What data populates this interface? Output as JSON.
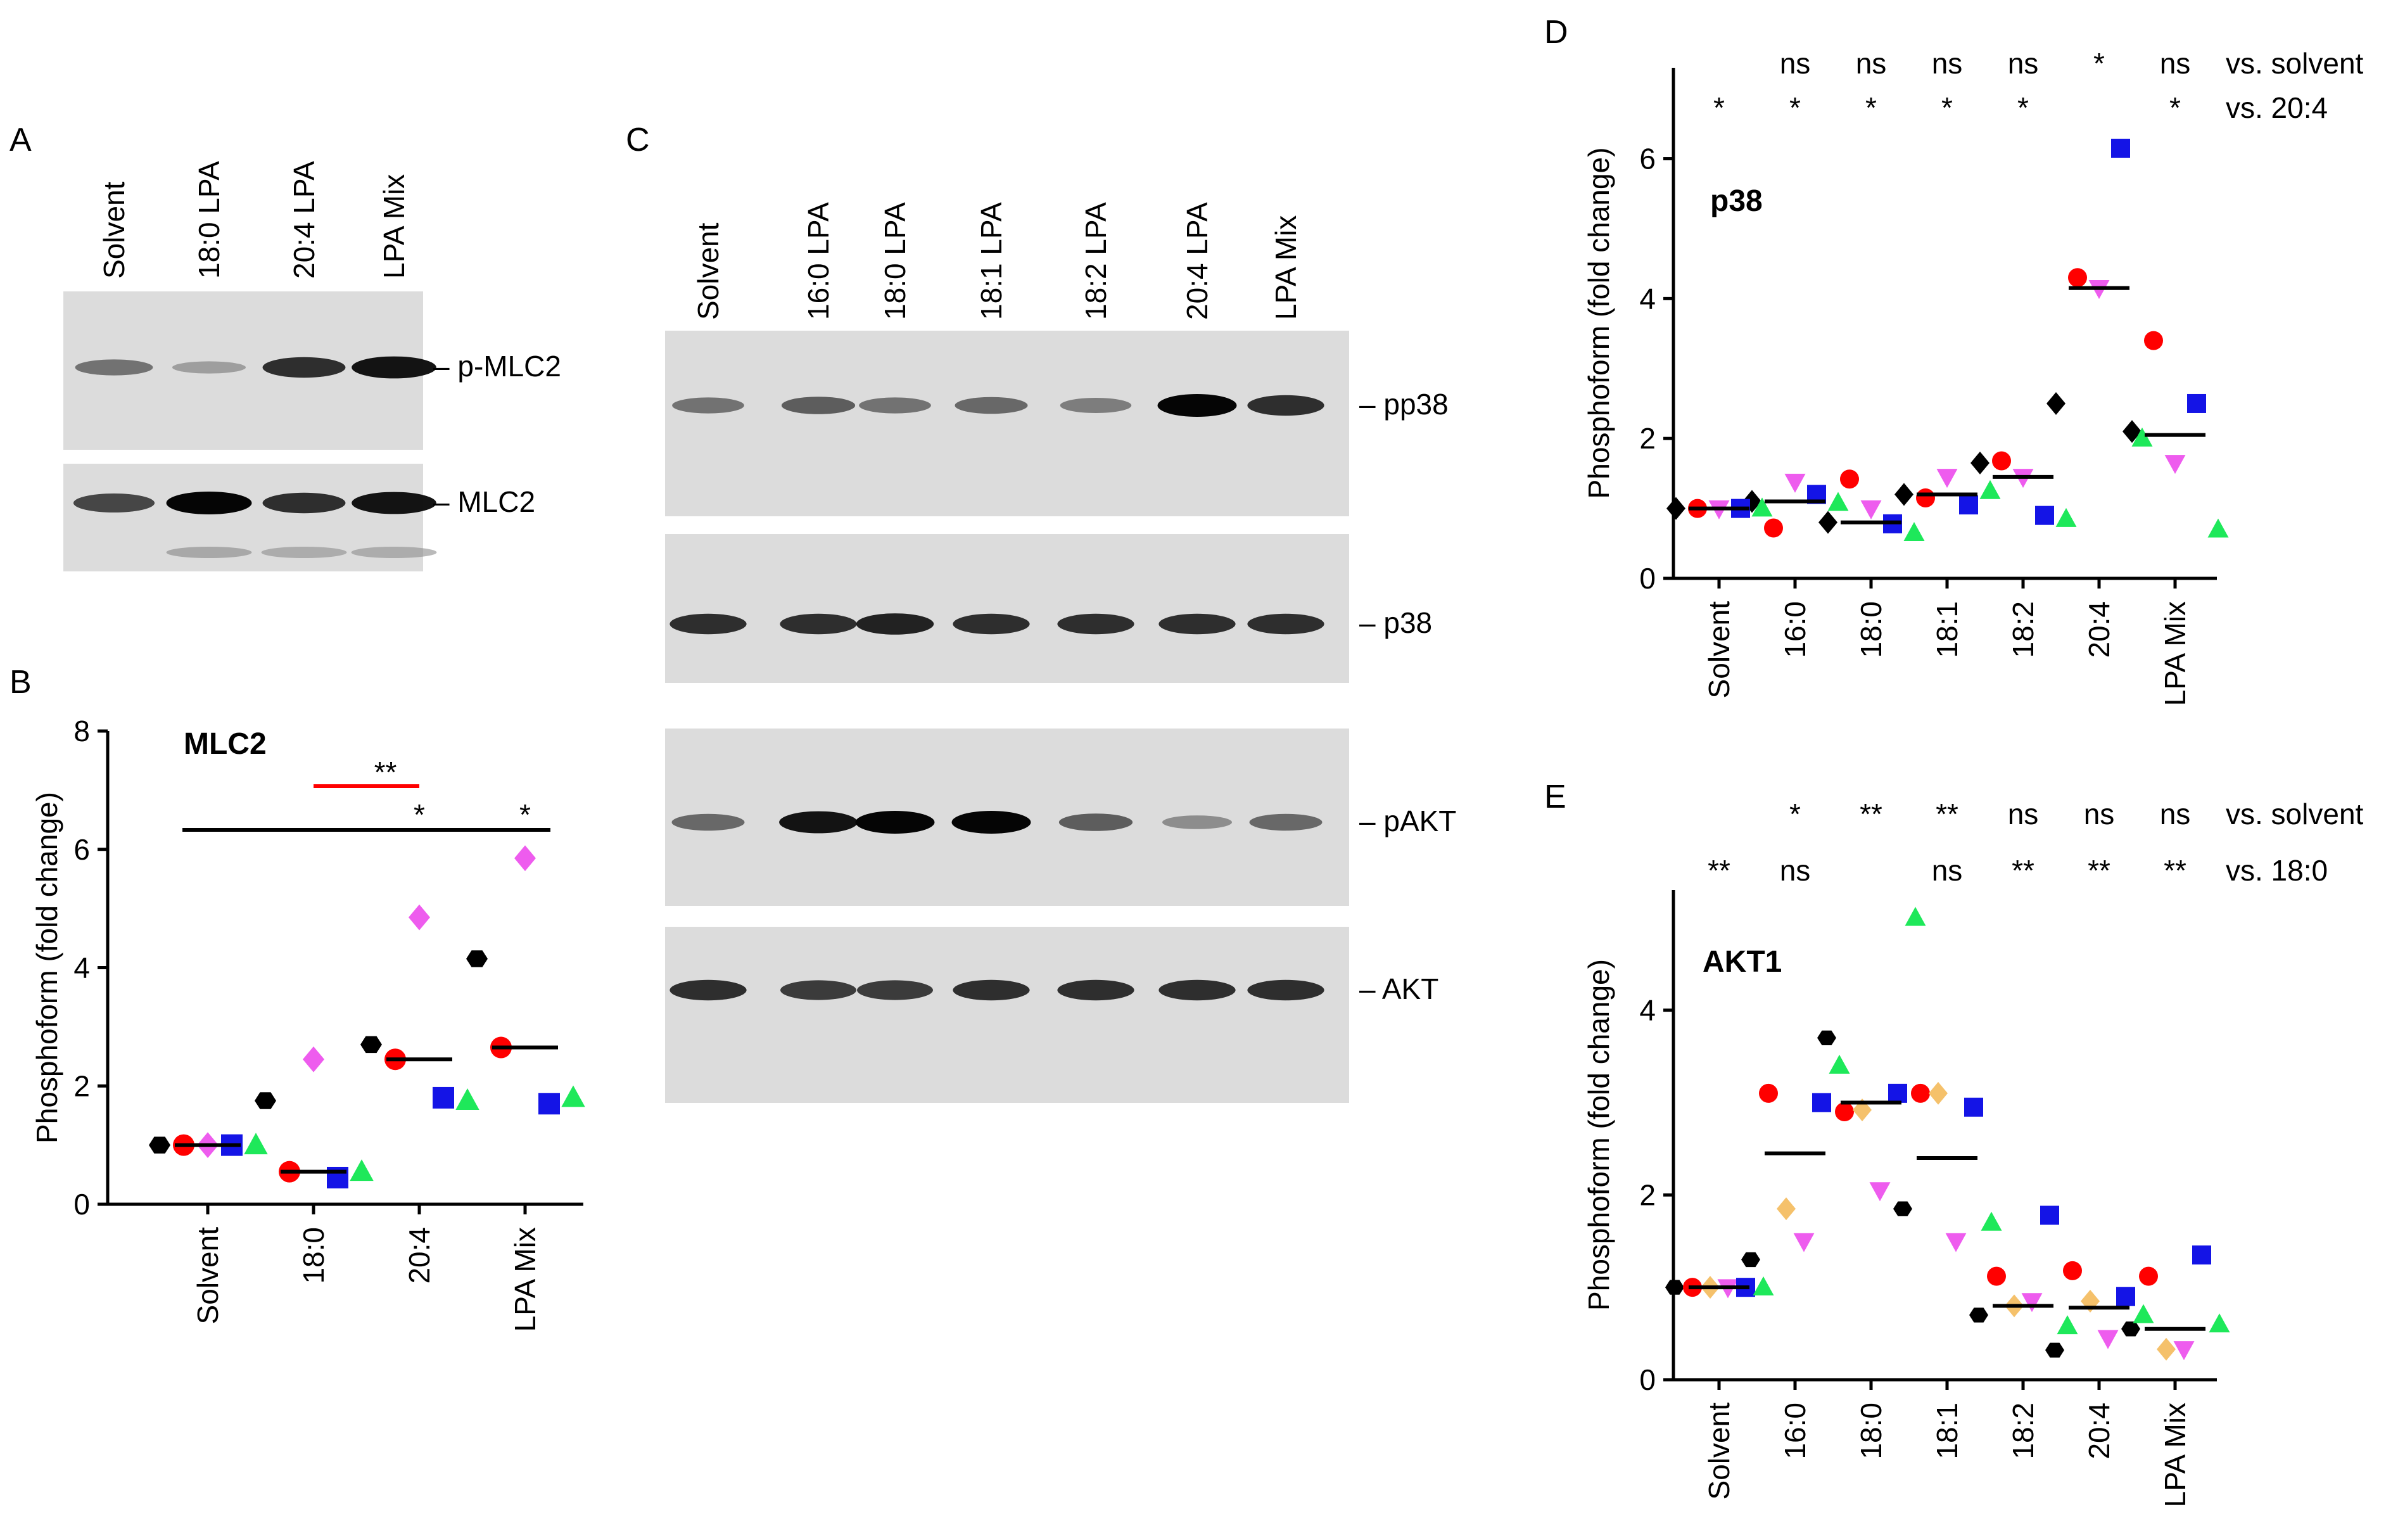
{
  "panels": {
    "A": {
      "letter": "A",
      "lanes": [
        "Solvent",
        "18:0 LPA",
        "20:4 LPA",
        "LPA Mix"
      ],
      "blots": [
        {
          "label": "– p-MLC2",
          "intensity": [
            0.55,
            0.3,
            0.85,
            0.95
          ],
          "lower_band": [
            0,
            0,
            0,
            0
          ]
        },
        {
          "label": "– MLC2",
          "intensity": [
            0.75,
            1.0,
            0.85,
            0.95
          ],
          "lower_band": [
            0,
            0.35,
            0.3,
            0.3
          ]
        }
      ]
    },
    "C": {
      "letter": "C",
      "lanes": [
        "Solvent",
        "16:0 LPA",
        "18:0 LPA",
        "18:1 LPA",
        "18:2 LPA",
        "20:4 LPA",
        "LPA Mix"
      ],
      "blots": [
        {
          "label": "– pp38",
          "intensity": [
            0.55,
            0.65,
            0.55,
            0.6,
            0.5,
            1.0,
            0.85
          ]
        },
        {
          "label": "– p38",
          "intensity": [
            0.85,
            0.85,
            0.9,
            0.85,
            0.85,
            0.85,
            0.85
          ]
        },
        {
          "label": "– pAKT",
          "intensity": [
            0.6,
            0.95,
            1.0,
            1.0,
            0.65,
            0.4,
            0.6
          ]
        },
        {
          "label": "– AKT",
          "intensity": [
            0.85,
            0.8,
            0.8,
            0.85,
            0.85,
            0.85,
            0.85
          ]
        }
      ]
    }
  },
  "chart_data": [
    {
      "panel": "B",
      "type": "scatter",
      "title": "MLC2",
      "ylabel": "Phosphoform (fold change)",
      "categories": [
        "Solvent",
        "18:0",
        "20:4",
        "LPA Mix"
      ],
      "ylim": [
        0,
        8
      ],
      "yticks": [
        0,
        2,
        4,
        6,
        8
      ],
      "medians": [
        1.0,
        0.55,
        2.45,
        2.65
      ],
      "series": [
        {
          "marker": "hexagon",
          "color": "#000000",
          "values": [
            1.0,
            1.75,
            2.7,
            4.15
          ]
        },
        {
          "marker": "circle",
          "color": "#ff0000",
          "values": [
            1.0,
            0.55,
            2.45,
            2.65
          ]
        },
        {
          "marker": "diamond",
          "color": "#ee5cee",
          "values": [
            1.0,
            2.45,
            4.85,
            5.85
          ]
        },
        {
          "marker": "square",
          "color": "#1414e6",
          "values": [
            1.0,
            0.45,
            1.8,
            1.7
          ]
        },
        {
          "marker": "triangle",
          "color": "#1ee85a",
          "values": [
            1.0,
            0.55,
            1.75,
            1.8
          ]
        }
      ],
      "significance": [
        {
          "label": "**",
          "from": "18:0",
          "to": "20:4",
          "color": "#ff0000"
        },
        {
          "label": "*",
          "from": "Solvent",
          "to": "20:4",
          "color": "#000000"
        },
        {
          "label": "*",
          "from": "Solvent",
          "to": "LPA Mix",
          "color": "#000000"
        }
      ]
    },
    {
      "panel": "D",
      "type": "scatter",
      "title": "p38",
      "ylabel": "Phosphoform (fold change)",
      "categories": [
        "Solvent",
        "16:0",
        "18:0",
        "18:1",
        "18:2",
        "20:4",
        "LPA Mix"
      ],
      "ylim": [
        0,
        7.3
      ],
      "yticks": [
        0,
        2,
        4,
        6
      ],
      "medians": [
        1.0,
        1.1,
        0.8,
        1.2,
        1.45,
        4.15,
        2.05
      ],
      "series": [
        {
          "marker": "diamond",
          "color": "#000000",
          "values": [
            1.0,
            1.1,
            0.8,
            1.2,
            1.65,
            2.5,
            2.1
          ]
        },
        {
          "marker": "circle",
          "color": "#ff0000",
          "values": [
            1.0,
            0.72,
            1.42,
            1.15,
            1.68,
            4.3,
            3.4
          ]
        },
        {
          "marker": "triangle-down",
          "color": "#ee5cee",
          "values": [
            1.0,
            1.38,
            1.0,
            1.45,
            1.45,
            4.15,
            1.65
          ]
        },
        {
          "marker": "square",
          "color": "#1414e6",
          "values": [
            1.0,
            1.2,
            0.78,
            1.05,
            0.9,
            6.15,
            2.5
          ]
        },
        {
          "marker": "triangle",
          "color": "#1ee85a",
          "values": [
            1.0,
            1.08,
            0.65,
            1.25,
            0.85,
            2.0,
            0.7
          ]
        }
      ],
      "annotations": [
        {
          "label": "vs. solvent",
          "values": [
            "",
            "ns",
            "ns",
            "ns",
            "ns",
            "*",
            "ns"
          ]
        },
        {
          "label": "vs. 20:4",
          "values": [
            "*",
            "*",
            "*",
            "*",
            "*",
            "",
            "*"
          ]
        }
      ]
    },
    {
      "panel": "E",
      "type": "scatter",
      "title": "AKT1",
      "ylabel": "Phosphoform (fold change)",
      "categories": [
        "Solvent",
        "16:0",
        "18:0",
        "18:1",
        "18:2",
        "20:4",
        "LPA Mix"
      ],
      "ylim": [
        0,
        5.3
      ],
      "yticks": [
        0,
        2,
        4
      ],
      "medians": [
        1.0,
        2.45,
        3.0,
        2.4,
        0.8,
        0.78,
        0.55
      ],
      "series": [
        {
          "marker": "hexagon",
          "color": "#000000",
          "values": [
            1.0,
            1.3,
            3.7,
            1.85,
            0.7,
            0.32,
            0.55
          ]
        },
        {
          "marker": "circle",
          "color": "#ff0000",
          "values": [
            1.0,
            3.1,
            2.9,
            3.1,
            1.12,
            1.18,
            1.12
          ]
        },
        {
          "marker": "diamond",
          "color": "#f5c16b",
          "values": [
            1.0,
            1.85,
            2.92,
            3.1,
            0.8,
            0.85,
            0.33
          ]
        },
        {
          "marker": "triangle-down",
          "color": "#ee5cee",
          "values": [
            1.0,
            1.5,
            2.05,
            1.5,
            0.85,
            0.45,
            0.33
          ]
        },
        {
          "marker": "square",
          "color": "#1414e6",
          "values": [
            1.0,
            3.0,
            3.1,
            2.95,
            1.78,
            0.9,
            1.35
          ]
        },
        {
          "marker": "triangle",
          "color": "#1ee85a",
          "values": [
            1.0,
            3.4,
            5.0,
            1.7,
            0.58,
            0.7,
            0.6
          ]
        }
      ],
      "annotations": [
        {
          "label": "vs. solvent",
          "values": [
            "",
            "*",
            "**",
            "**",
            "ns",
            "ns",
            "ns"
          ]
        },
        {
          "label": "vs. 18:0",
          "values": [
            "**",
            "ns",
            "",
            "ns",
            "**",
            "**",
            "**"
          ]
        }
      ]
    }
  ]
}
